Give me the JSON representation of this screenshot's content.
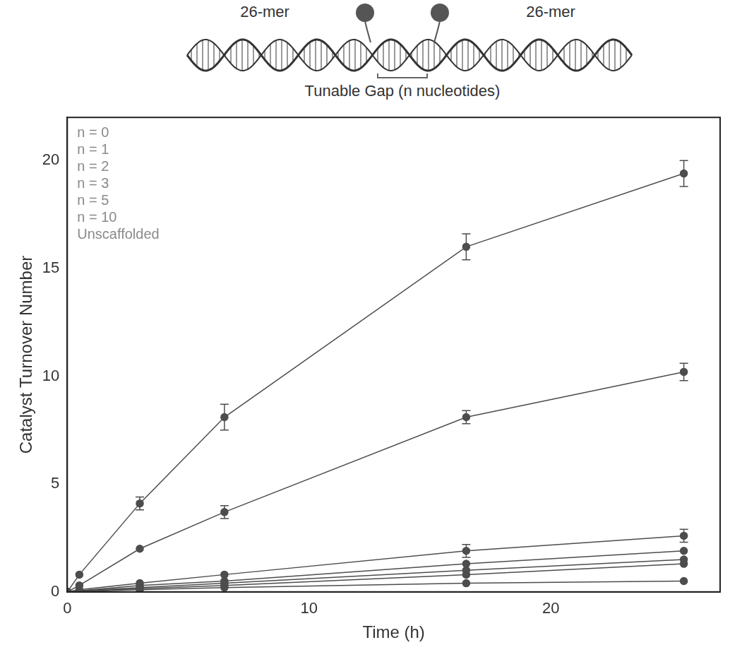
{
  "chart_data": {
    "type": "line",
    "x_label": "Time (h)",
    "y_label": "Catalyst Turnover Number",
    "x": [
      0,
      0.5,
      3,
      6.5,
      16.5,
      25.5
    ],
    "series": [
      {
        "name": "n = 0",
        "color": "#4d4d4d",
        "marker": "circle",
        "line_style": "solid",
        "values": [
          0,
          0.8,
          4.1,
          8.1,
          16.0,
          19.4
        ],
        "errors": [
          null,
          null,
          0.3,
          0.6,
          0.6,
          0.6
        ]
      },
      {
        "name": "n = 1",
        "color": "#4d4d4d",
        "marker": "circle",
        "line_style": "solid",
        "values": [
          0,
          0.3,
          2.0,
          3.7,
          8.1,
          10.2
        ],
        "errors": [
          null,
          null,
          null,
          0.3,
          0.3,
          0.4
        ]
      },
      {
        "name": "n = 2",
        "color": "#4d4d4d",
        "marker": "circle",
        "line_style": "solid",
        "values": [
          0,
          0.1,
          0.4,
          0.8,
          1.9,
          2.6
        ],
        "errors": [
          null,
          null,
          null,
          null,
          0.3,
          0.3
        ]
      },
      {
        "name": "n = 3",
        "color": "#4d4d4d",
        "marker": "circle",
        "line_style": "solid",
        "values": [
          0,
          0.05,
          0.3,
          0.5,
          1.3,
          1.9
        ],
        "errors": [
          null,
          null,
          null,
          null,
          null,
          null
        ]
      },
      {
        "name": "n = 5",
        "color": "#4d4d4d",
        "marker": "circle",
        "line_style": "solid",
        "values": [
          0,
          0.05,
          0.2,
          0.4,
          1.0,
          1.5
        ],
        "errors": [
          null,
          null,
          null,
          null,
          null,
          null
        ]
      },
      {
        "name": "n = 10",
        "color": "#4d4d4d",
        "marker": "circle",
        "line_style": "solid",
        "values": [
          0,
          0.03,
          0.15,
          0.3,
          0.8,
          1.3
        ],
        "errors": [
          null,
          null,
          null,
          null,
          null,
          null
        ]
      },
      {
        "name": "Unscaffolded",
        "color": "#4d4d4d",
        "marker": "circle",
        "line_style": "solid",
        "values": [
          0,
          0.02,
          0.1,
          0.2,
          0.4,
          0.5
        ],
        "errors": [
          null,
          null,
          null,
          null,
          null,
          null
        ]
      }
    ],
    "xlim": [
      0,
      27
    ],
    "xticks": [
      0,
      10,
      20
    ],
    "ylim": [
      0,
      22
    ],
    "yticks": [
      0,
      5,
      10,
      15,
      20
    ],
    "grid": false,
    "legend": "upper left"
  },
  "diagram": {
    "left_label": "26-mer",
    "right_label": "26-mer",
    "gap_label": "Tunable Gap (n nucleotides)"
  }
}
